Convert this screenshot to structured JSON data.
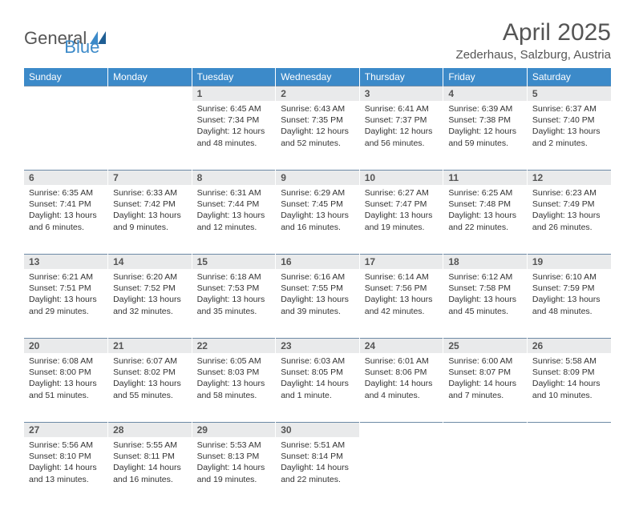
{
  "brand": {
    "part1": "General",
    "part2": "Blue"
  },
  "title": "April 2025",
  "location": "Zederhaus, Salzburg, Austria",
  "colors": {
    "header_bg": "#3c8ac9",
    "header_text": "#ffffff",
    "daynum_bg": "#e9eaeb",
    "border": "#6d8aa6",
    "text": "#333333",
    "title_color": "#555555"
  },
  "day_labels": [
    "Sunday",
    "Monday",
    "Tuesday",
    "Wednesday",
    "Thursday",
    "Friday",
    "Saturday"
  ],
  "weeks": [
    [
      null,
      null,
      {
        "n": "1",
        "sr": "Sunrise: 6:45 AM",
        "ss": "Sunset: 7:34 PM",
        "dl": "Daylight: 12 hours and 48 minutes."
      },
      {
        "n": "2",
        "sr": "Sunrise: 6:43 AM",
        "ss": "Sunset: 7:35 PM",
        "dl": "Daylight: 12 hours and 52 minutes."
      },
      {
        "n": "3",
        "sr": "Sunrise: 6:41 AM",
        "ss": "Sunset: 7:37 PM",
        "dl": "Daylight: 12 hours and 56 minutes."
      },
      {
        "n": "4",
        "sr": "Sunrise: 6:39 AM",
        "ss": "Sunset: 7:38 PM",
        "dl": "Daylight: 12 hours and 59 minutes."
      },
      {
        "n": "5",
        "sr": "Sunrise: 6:37 AM",
        "ss": "Sunset: 7:40 PM",
        "dl": "Daylight: 13 hours and 2 minutes."
      }
    ],
    [
      {
        "n": "6",
        "sr": "Sunrise: 6:35 AM",
        "ss": "Sunset: 7:41 PM",
        "dl": "Daylight: 13 hours and 6 minutes."
      },
      {
        "n": "7",
        "sr": "Sunrise: 6:33 AM",
        "ss": "Sunset: 7:42 PM",
        "dl": "Daylight: 13 hours and 9 minutes."
      },
      {
        "n": "8",
        "sr": "Sunrise: 6:31 AM",
        "ss": "Sunset: 7:44 PM",
        "dl": "Daylight: 13 hours and 12 minutes."
      },
      {
        "n": "9",
        "sr": "Sunrise: 6:29 AM",
        "ss": "Sunset: 7:45 PM",
        "dl": "Daylight: 13 hours and 16 minutes."
      },
      {
        "n": "10",
        "sr": "Sunrise: 6:27 AM",
        "ss": "Sunset: 7:47 PM",
        "dl": "Daylight: 13 hours and 19 minutes."
      },
      {
        "n": "11",
        "sr": "Sunrise: 6:25 AM",
        "ss": "Sunset: 7:48 PM",
        "dl": "Daylight: 13 hours and 22 minutes."
      },
      {
        "n": "12",
        "sr": "Sunrise: 6:23 AM",
        "ss": "Sunset: 7:49 PM",
        "dl": "Daylight: 13 hours and 26 minutes."
      }
    ],
    [
      {
        "n": "13",
        "sr": "Sunrise: 6:21 AM",
        "ss": "Sunset: 7:51 PM",
        "dl": "Daylight: 13 hours and 29 minutes."
      },
      {
        "n": "14",
        "sr": "Sunrise: 6:20 AM",
        "ss": "Sunset: 7:52 PM",
        "dl": "Daylight: 13 hours and 32 minutes."
      },
      {
        "n": "15",
        "sr": "Sunrise: 6:18 AM",
        "ss": "Sunset: 7:53 PM",
        "dl": "Daylight: 13 hours and 35 minutes."
      },
      {
        "n": "16",
        "sr": "Sunrise: 6:16 AM",
        "ss": "Sunset: 7:55 PM",
        "dl": "Daylight: 13 hours and 39 minutes."
      },
      {
        "n": "17",
        "sr": "Sunrise: 6:14 AM",
        "ss": "Sunset: 7:56 PM",
        "dl": "Daylight: 13 hours and 42 minutes."
      },
      {
        "n": "18",
        "sr": "Sunrise: 6:12 AM",
        "ss": "Sunset: 7:58 PM",
        "dl": "Daylight: 13 hours and 45 minutes."
      },
      {
        "n": "19",
        "sr": "Sunrise: 6:10 AM",
        "ss": "Sunset: 7:59 PM",
        "dl": "Daylight: 13 hours and 48 minutes."
      }
    ],
    [
      {
        "n": "20",
        "sr": "Sunrise: 6:08 AM",
        "ss": "Sunset: 8:00 PM",
        "dl": "Daylight: 13 hours and 51 minutes."
      },
      {
        "n": "21",
        "sr": "Sunrise: 6:07 AM",
        "ss": "Sunset: 8:02 PM",
        "dl": "Daylight: 13 hours and 55 minutes."
      },
      {
        "n": "22",
        "sr": "Sunrise: 6:05 AM",
        "ss": "Sunset: 8:03 PM",
        "dl": "Daylight: 13 hours and 58 minutes."
      },
      {
        "n": "23",
        "sr": "Sunrise: 6:03 AM",
        "ss": "Sunset: 8:05 PM",
        "dl": "Daylight: 14 hours and 1 minute."
      },
      {
        "n": "24",
        "sr": "Sunrise: 6:01 AM",
        "ss": "Sunset: 8:06 PM",
        "dl": "Daylight: 14 hours and 4 minutes."
      },
      {
        "n": "25",
        "sr": "Sunrise: 6:00 AM",
        "ss": "Sunset: 8:07 PM",
        "dl": "Daylight: 14 hours and 7 minutes."
      },
      {
        "n": "26",
        "sr": "Sunrise: 5:58 AM",
        "ss": "Sunset: 8:09 PM",
        "dl": "Daylight: 14 hours and 10 minutes."
      }
    ],
    [
      {
        "n": "27",
        "sr": "Sunrise: 5:56 AM",
        "ss": "Sunset: 8:10 PM",
        "dl": "Daylight: 14 hours and 13 minutes."
      },
      {
        "n": "28",
        "sr": "Sunrise: 5:55 AM",
        "ss": "Sunset: 8:11 PM",
        "dl": "Daylight: 14 hours and 16 minutes."
      },
      {
        "n": "29",
        "sr": "Sunrise: 5:53 AM",
        "ss": "Sunset: 8:13 PM",
        "dl": "Daylight: 14 hours and 19 minutes."
      },
      {
        "n": "30",
        "sr": "Sunrise: 5:51 AM",
        "ss": "Sunset: 8:14 PM",
        "dl": "Daylight: 14 hours and 22 minutes."
      },
      null,
      null,
      null
    ]
  ]
}
